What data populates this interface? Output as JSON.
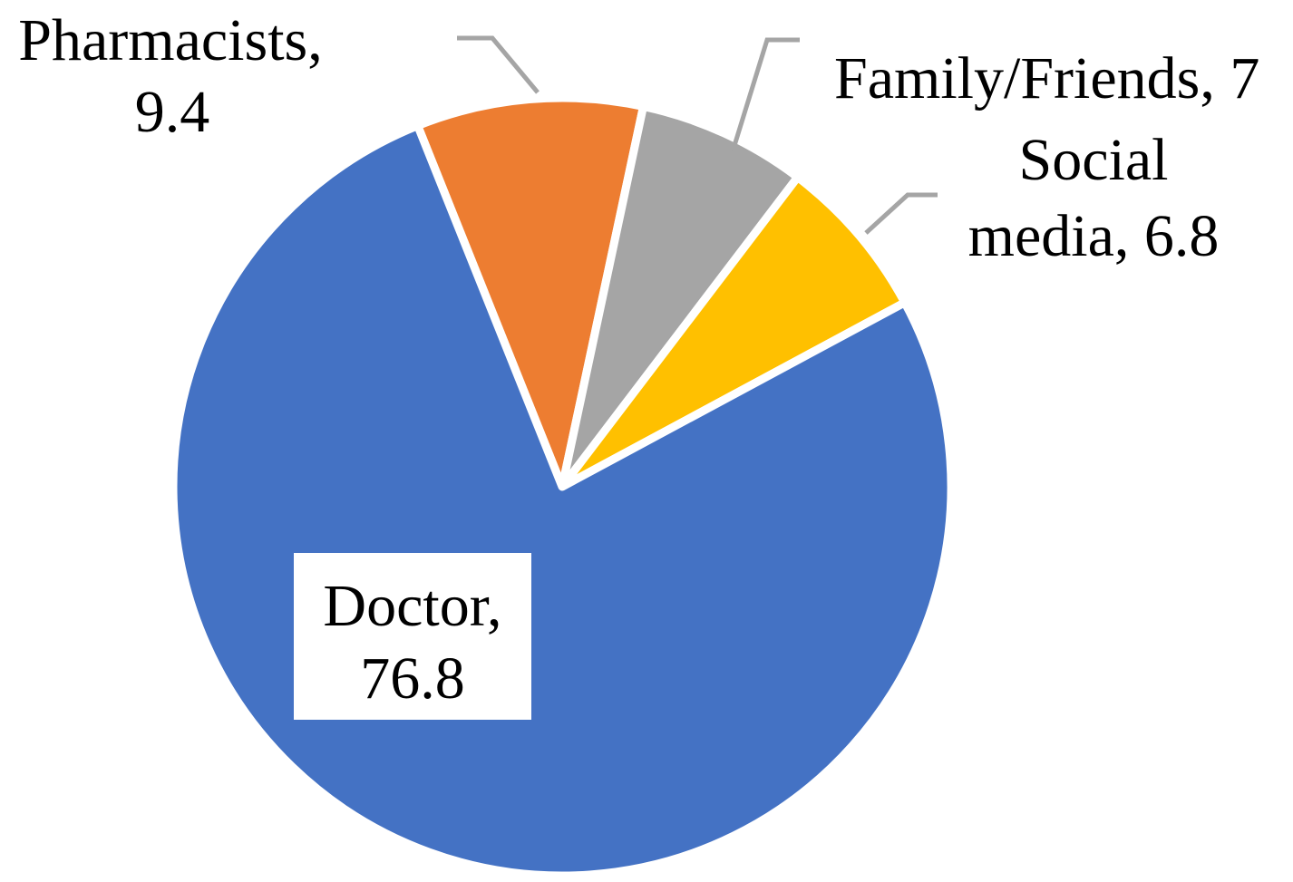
{
  "chart_data": {
    "type": "pie",
    "title": "",
    "slices": [
      {
        "label": "Pharmacists",
        "value": 9.4,
        "value_text": "9.4",
        "color": "#ED7D31"
      },
      {
        "label": "Family/Friends",
        "value": 7,
        "value_text": "7",
        "color": "#A5A5A5"
      },
      {
        "label": "Social media",
        "value": 6.8,
        "value_text": "6.8",
        "color": "#FFC000"
      },
      {
        "label": "Doctor",
        "value": 76.8,
        "value_text": "76.8",
        "color": "#4472C4"
      }
    ],
    "labels_text": {
      "pharmacists_line1": "Pharmacists,",
      "pharmacists_line2": "9.4",
      "family": "Family/Friends, 7",
      "social_line1": "Social",
      "social_line2": "media, 6.8",
      "doctor_line1": "Doctor,",
      "doctor_line2": "76.8"
    },
    "legend": "none",
    "start_angle_deg": -21.8,
    "direction": "clockwise",
    "leader_color": "#A5A5A5"
  }
}
